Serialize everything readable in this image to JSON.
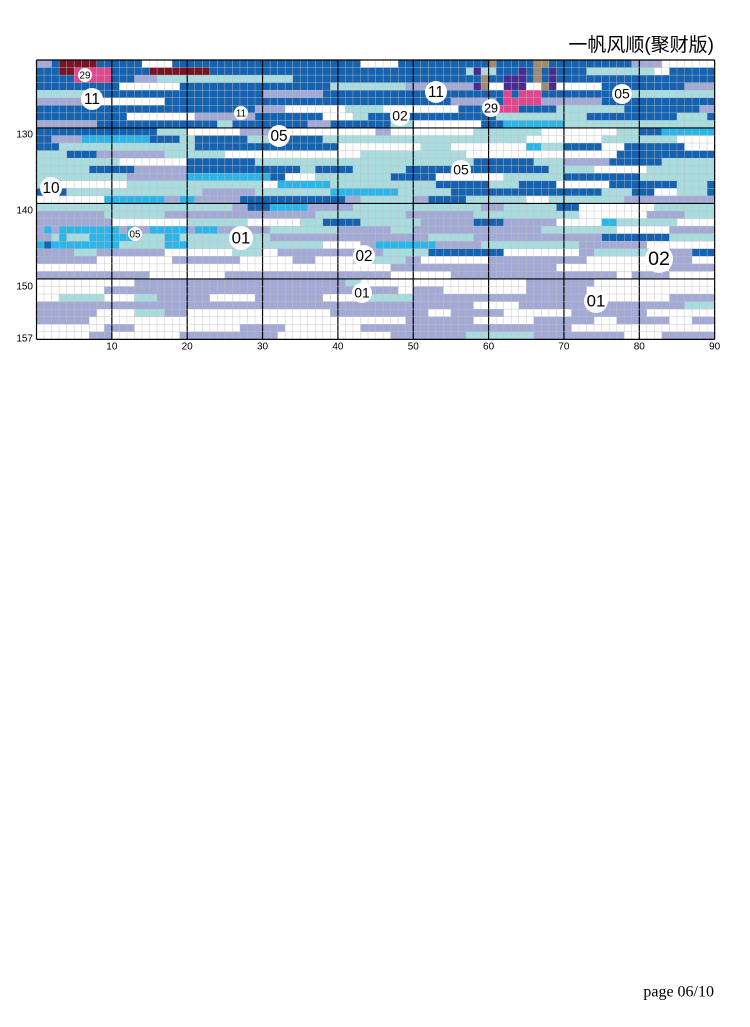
{
  "header": {
    "title": "一帆风顺(聚财版)"
  },
  "grid": {
    "row_labels": [
      "130",
      "140",
      "150",
      "157"
    ],
    "column_labels": [
      "10",
      "20",
      "30",
      "40",
      "50",
      "60",
      "70",
      "80",
      "90"
    ],
    "symbols": [
      "29",
      "11",
      "11",
      "05",
      "02",
      "11",
      "29",
      "05",
      "05",
      "10",
      "05",
      "01",
      "02",
      "02",
      "01",
      "01"
    ]
  },
  "footer": {
    "page": "page 06/10"
  }
}
